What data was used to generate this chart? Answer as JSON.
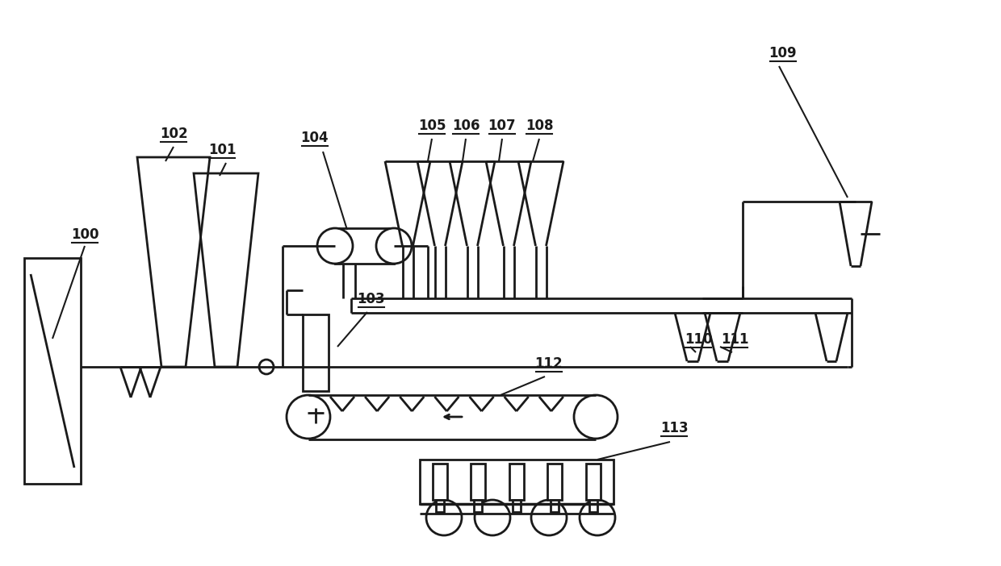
{
  "bg_color": "#ffffff",
  "line_color": "#1a1a1a",
  "lw": 2.0,
  "fig_w": 12.4,
  "fig_h": 7.02,
  "dpi": 100
}
